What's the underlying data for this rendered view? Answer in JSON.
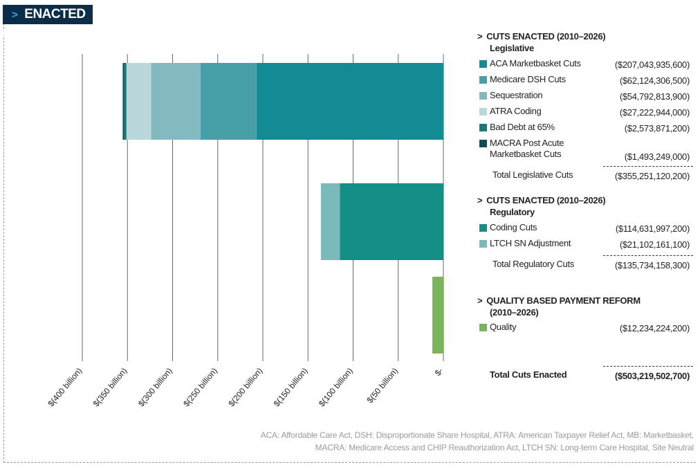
{
  "header": {
    "chevron": ">",
    "title": "ENACTED CUTS"
  },
  "chart_data": {
    "type": "bar",
    "orientation": "horizontal-stacked",
    "xlim": [
      -400,
      0
    ],
    "x_unit": "billion USD",
    "ticks": [
      -400,
      -350,
      -300,
      -250,
      -200,
      -150,
      -100,
      -50,
      0
    ],
    "tick_labels": [
      "$(400 billion)",
      "$(350 billion)",
      "$(300 billion)",
      "$(250 billion)",
      "$(200 billion)",
      "$(150 billion)",
      "$(100 billion)",
      "$(50 billion)",
      "$-"
    ],
    "grid": true,
    "bars": [
      {
        "category": "Legislative",
        "segments": [
          {
            "name": "ACA Marketbasket Cuts",
            "value": -207.04,
            "color": "#138b95"
          },
          {
            "name": "Medicare DSH Cuts",
            "value": -62.12,
            "color": "#47a0a8"
          },
          {
            "name": "Sequestration",
            "value": -54.79,
            "color": "#83b9c0"
          },
          {
            "name": "ATRA Coding",
            "value": -27.22,
            "color": "#bad7dc"
          },
          {
            "name": "Bad Debt at 65%",
            "value": -2.57,
            "color": "#167a7a"
          },
          {
            "name": "MACRA Post Acute Marketbasket Cuts",
            "value": -1.49,
            "color": "#0d4f57"
          }
        ]
      },
      {
        "category": "Regulatory",
        "segments": [
          {
            "name": "Coding Cuts",
            "value": -114.63,
            "color": "#148f85"
          },
          {
            "name": "LTCH SN Adjustment",
            "value": -21.1,
            "color": "#7ababa"
          }
        ]
      },
      {
        "category": "Quality",
        "segments": [
          {
            "name": "Quality",
            "value": -12.23,
            "color": "#7ab55c"
          }
        ]
      }
    ]
  },
  "legend": {
    "sections": [
      {
        "chevron": ">",
        "title": "CUTS ENACTED (2010–2026)",
        "subtitle": "Legislative",
        "items": [
          {
            "label": "ACA Marketbasket Cuts",
            "value": "($207,043,935,600)",
            "color": "#138b95"
          },
          {
            "label": "Medicare DSH Cuts",
            "value": "($62,124,306,500)",
            "color": "#47a0a8"
          },
          {
            "label": "Sequestration",
            "value": "($54,792,813,900)",
            "color": "#83b9c0"
          },
          {
            "label": "ATRA Coding",
            "value": "($27,222,944,000)",
            "color": "#bad7dc"
          },
          {
            "label": "Bad Debt at 65%",
            "value": "($2,573,871,200)",
            "color": "#167a7a"
          },
          {
            "label": "MACRA Post Acute",
            "label2": "Marketbasket Cuts",
            "value": "($1,493,249,000)",
            "color": "#0d4f57"
          }
        ],
        "total_label": "Total Legislative Cuts",
        "total_value": "($355,251,120,200)"
      },
      {
        "chevron": ">",
        "title": "CUTS ENACTED (2010–2026)",
        "subtitle": "Regulatory",
        "items": [
          {
            "label": "Coding Cuts",
            "value": "($114,631,997,200)",
            "color": "#148f85"
          },
          {
            "label": "LTCH SN Adjustment",
            "value": "($21,102,161,100)",
            "color": "#7ababa"
          }
        ],
        "total_label": "Total Regulatory Cuts",
        "total_value": "($135,734,158,300)"
      },
      {
        "chevron": ">",
        "title": "QUALITY BASED PAYMENT REFORM",
        "subtitle": "(2010–2026)",
        "items": [
          {
            "label": "Quality",
            "value": "($12,234,224,200)",
            "color": "#7ab55c"
          }
        ]
      }
    ],
    "grand_total_label": "Total Cuts Enacted",
    "grand_total_value": "($503,219,502,700)"
  },
  "footnote": {
    "line1": "ACA: Affordable Care Act, DSH: Disproportionate Share Hospital, ATRA: American Taxpayer Relief Act, MB: Marketbasket,",
    "line2": "MACRA: Medicare Access and CHIP Reauthorization Act, LTCH SN: Long-term Care Hospital, Site Neutral"
  }
}
